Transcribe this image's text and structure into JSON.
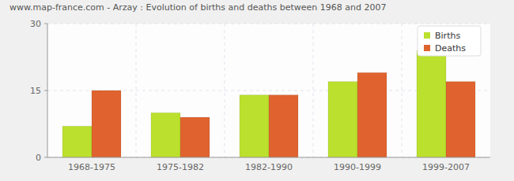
{
  "chart_data": {
    "type": "bar",
    "title": "www.map-france.com - Arzay : Evolution of births and deaths between 1968 and 2007",
    "categories": [
      "1968-1975",
      "1975-1982",
      "1982-1990",
      "1990-1999",
      "1999-2007"
    ],
    "series": [
      {
        "name": "Births",
        "color": "#bbe02d",
        "values": [
          7,
          10,
          14,
          17,
          24
        ]
      },
      {
        "name": "Deaths",
        "color": "#e0632f",
        "values": [
          15,
          9,
          14,
          19,
          17
        ]
      }
    ],
    "ylim": [
      0,
      30
    ],
    "yticks": [
      0,
      15,
      30
    ],
    "grid": true,
    "legend": "top-right"
  }
}
